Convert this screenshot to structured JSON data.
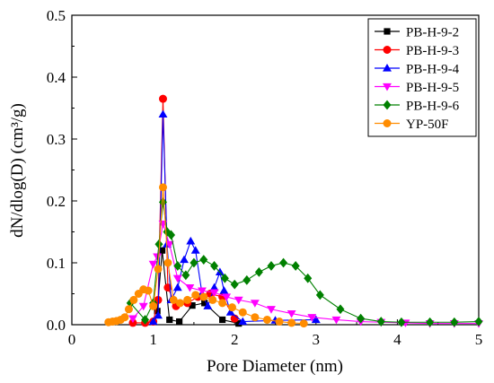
{
  "chart_data": {
    "type": "scatter",
    "xlabel": "Pore Diameter (nm)",
    "ylabel": "dN/dlog(D) (cm³/g)",
    "xlim": [
      0,
      5
    ],
    "ylim": [
      0,
      0.5
    ],
    "x_ticks": [
      0,
      1,
      2,
      3,
      4,
      5
    ],
    "y_ticks": [
      0.0,
      0.1,
      0.2,
      0.3,
      0.4,
      0.5
    ],
    "grid": false,
    "legend_position": "top-right",
    "series": [
      {
        "name": "PB-H-9-2",
        "color": "#000000",
        "marker": "square",
        "x": [
          1.05,
          1.11,
          1.2,
          1.32,
          1.48,
          1.63,
          1.85,
          2.05
        ],
        "y": [
          0.022,
          0.12,
          0.008,
          0.005,
          0.031,
          0.035,
          0.008,
          0.002
        ]
      },
      {
        "name": "PB-H-9-3",
        "color": "#ff0000",
        "marker": "circle",
        "x": [
          0.75,
          0.9,
          1.0,
          1.06,
          1.12,
          1.18,
          1.28,
          1.42,
          1.55,
          1.7,
          1.85,
          2.0
        ],
        "y": [
          0.003,
          0.003,
          0.005,
          0.04,
          0.365,
          0.06,
          0.03,
          0.035,
          0.045,
          0.05,
          0.045,
          0.01
        ]
      },
      {
        "name": "PB-H-9-4",
        "color": "#0000ff",
        "marker": "triangle-up",
        "x": [
          1.0,
          1.06,
          1.12,
          1.17,
          1.22,
          1.3,
          1.38,
          1.46,
          1.52,
          1.6,
          1.67,
          1.75,
          1.82,
          1.87,
          1.95,
          2.1,
          2.5,
          3.0
        ],
        "y": [
          0.005,
          0.015,
          0.34,
          0.13,
          0.04,
          0.06,
          0.105,
          0.135,
          0.12,
          0.05,
          0.03,
          0.06,
          0.085,
          0.055,
          0.02,
          0.005,
          0.007,
          0.008
        ]
      },
      {
        "name": "PB-H-9-5",
        "color": "#ff00ff",
        "marker": "triangle-down",
        "x": [
          0.75,
          0.88,
          1.0,
          1.05,
          1.12,
          1.2,
          1.3,
          1.45,
          1.6,
          1.75,
          1.9,
          2.05,
          2.25,
          2.45,
          2.7,
          2.95,
          3.25,
          3.55,
          3.8,
          4.1,
          4.4,
          4.7,
          5.0
        ],
        "y": [
          0.01,
          0.03,
          0.098,
          0.11,
          0.163,
          0.13,
          0.075,
          0.06,
          0.055,
          0.052,
          0.045,
          0.04,
          0.035,
          0.025,
          0.018,
          0.012,
          0.008,
          0.005,
          0.004,
          0.003,
          0.002,
          0.002,
          0.002
        ]
      },
      {
        "name": "PB-H-9-6",
        "color": "#008000",
        "marker": "diamond",
        "x": [
          0.72,
          0.9,
          1.0,
          1.07,
          1.12,
          1.17,
          1.22,
          1.3,
          1.4,
          1.5,
          1.62,
          1.75,
          1.88,
          2.0,
          2.15,
          2.3,
          2.45,
          2.6,
          2.75,
          2.9,
          3.05,
          3.3,
          3.55,
          3.8,
          4.05,
          4.4,
          4.7,
          5.0
        ],
        "y": [
          0.035,
          0.008,
          0.035,
          0.13,
          0.198,
          0.15,
          0.145,
          0.095,
          0.08,
          0.1,
          0.105,
          0.095,
          0.075,
          0.065,
          0.072,
          0.085,
          0.095,
          0.1,
          0.095,
          0.075,
          0.048,
          0.025,
          0.01,
          0.005,
          0.004,
          0.004,
          0.004,
          0.005
        ]
      },
      {
        "name": "YP-50F",
        "color": "#ff8c00",
        "marker": "circle",
        "x": [
          0.45,
          0.5,
          0.55,
          0.6,
          0.65,
          0.7,
          0.76,
          0.82,
          0.88,
          0.94,
          1.0,
          1.06,
          1.12,
          1.18,
          1.25,
          1.33,
          1.42,
          1.52,
          1.62,
          1.73,
          1.85,
          1.97,
          2.1,
          2.25,
          2.4,
          2.55,
          2.7,
          2.85
        ],
        "y": [
          0.004,
          0.005,
          0.006,
          0.008,
          0.012,
          0.025,
          0.04,
          0.05,
          0.057,
          0.055,
          0.03,
          0.09,
          0.222,
          0.1,
          0.04,
          0.035,
          0.04,
          0.048,
          0.045,
          0.04,
          0.035,
          0.028,
          0.02,
          0.012,
          0.008,
          0.005,
          0.003,
          0.002
        ]
      }
    ]
  }
}
